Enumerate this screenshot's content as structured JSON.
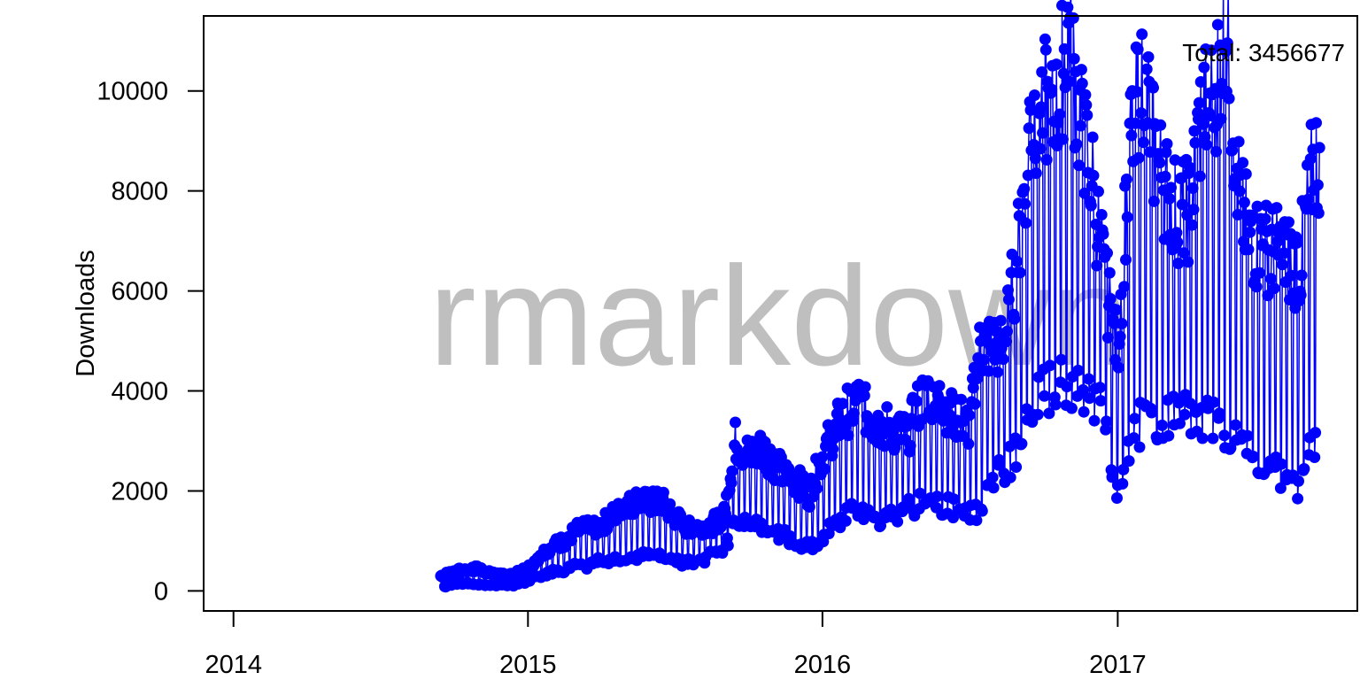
{
  "chart_data": {
    "type": "line",
    "title": "",
    "xlabel": "",
    "ylabel": "Downloads",
    "watermark": "rmarkdown",
    "annotation": "Total: 3456677",
    "color": "#0000ff",
    "grid": false,
    "xlim": [
      "2013-11-25",
      "2017-10-25"
    ],
    "ylim": [
      -400,
      11500
    ],
    "x_ticks": [
      {
        "date": "2014-01-01",
        "label": "2014"
      },
      {
        "date": "2015-01-01",
        "label": "2015"
      },
      {
        "date": "2016-01-01",
        "label": "2016"
      },
      {
        "date": "2017-01-01",
        "label": "2017"
      }
    ],
    "y_ticks": [
      0,
      2000,
      4000,
      6000,
      8000,
      10000
    ],
    "series": [
      {
        "type": "weekly_range",
        "x": [
          "2014-09-15",
          "2014-10-01",
          "2014-10-15",
          "2014-11-01",
          "2014-11-15",
          "2014-12-01",
          "2014-12-15",
          "2015-01-01",
          "2015-01-15",
          "2015-02-01",
          "2015-02-15",
          "2015-03-01",
          "2015-03-15",
          "2015-04-01",
          "2015-04-15",
          "2015-05-01",
          "2015-05-15",
          "2015-06-01",
          "2015-06-15",
          "2015-07-01",
          "2015-07-15",
          "2015-08-01",
          "2015-08-15",
          "2015-09-01",
          "2015-09-15",
          "2015-10-01",
          "2015-10-15",
          "2015-11-01",
          "2015-11-15",
          "2015-12-01",
          "2015-12-15",
          "2016-01-01",
          "2016-01-15",
          "2016-02-01",
          "2016-02-15",
          "2016-03-01",
          "2016-03-15",
          "2016-04-01",
          "2016-04-15",
          "2016-05-01",
          "2016-05-15",
          "2016-06-01",
          "2016-06-15",
          "2016-07-01",
          "2016-07-15",
          "2016-08-01",
          "2016-08-15",
          "2016-09-01",
          "2016-09-15",
          "2016-10-01",
          "2016-10-15",
          "2016-11-01",
          "2016-11-15",
          "2016-12-01",
          "2016-12-15",
          "2017-01-01",
          "2017-01-15",
          "2017-02-01",
          "2017-02-15",
          "2017-03-01",
          "2017-03-15",
          "2017-04-01",
          "2017-04-15",
          "2017-05-01",
          "2017-05-15",
          "2017-06-01",
          "2017-06-15",
          "2017-07-01",
          "2017-07-15",
          "2017-08-01",
          "2017-08-15",
          "2017-09-01"
        ],
        "low": [
          60,
          150,
          150,
          130,
          120,
          110,
          120,
          200,
          300,
          400,
          400,
          500,
          500,
          600,
          600,
          700,
          700,
          800,
          700,
          600,
          550,
          600,
          700,
          800,
          1500,
          1300,
          1300,
          1200,
          1100,
          900,
          900,
          1100,
          1300,
          1500,
          1600,
          1700,
          1400,
          1500,
          1600,
          1800,
          1700,
          1700,
          1600,
          1500,
          1700,
          2300,
          2400,
          3000,
          3600,
          3900,
          4200,
          4100,
          4200,
          3800,
          3700,
          1900,
          2700,
          3500,
          3300,
          3500,
          3600,
          3500,
          3400,
          3400,
          3300,
          2900,
          2700,
          2600,
          2500,
          2200,
          2100,
          3000
        ],
        "high": [
          300,
          380,
          420,
          450,
          350,
          320,
          330,
          450,
          700,
          900,
          1000,
          1200,
          1250,
          1300,
          1500,
          1650,
          1800,
          1750,
          1800,
          1500,
          1300,
          1300,
          1300,
          1500,
          3000,
          2700,
          2900,
          2600,
          2300,
          2200,
          1900,
          2700,
          3200,
          3600,
          3800,
          3400,
          3300,
          3200,
          3100,
          3800,
          4000,
          3700,
          3500,
          3300,
          4900,
          4900,
          5000,
          7000,
          9500,
          9800,
          9300,
          11300,
          9400,
          8200,
          6300,
          4800,
          8700,
          10500,
          8800,
          8100,
          7600,
          7600,
          9600,
          10000,
          11300,
          7800,
          7000,
          6900,
          6800,
          6600,
          6500,
          8600
        ]
      }
    ]
  }
}
